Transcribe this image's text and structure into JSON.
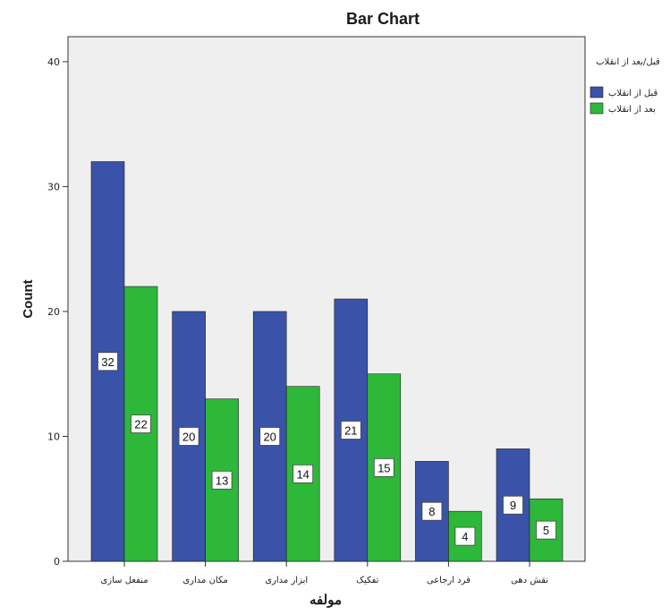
{
  "chart_data": {
    "type": "bar",
    "title": "Bar Chart",
    "xlabel": "مولفه",
    "ylabel": "Count",
    "ylim": [
      0,
      42
    ],
    "yticks": [
      0,
      10,
      20,
      30,
      40
    ],
    "categories": [
      "منفعل سازی",
      "مکان مداری",
      "ابزار مداری",
      "تفکیک",
      "فرد ارجاعی",
      "نقش دهی"
    ],
    "series": [
      {
        "name": "قبل از انقلاب",
        "color": "#3a52a8",
        "values": [
          32,
          20,
          20,
          21,
          8,
          9
        ]
      },
      {
        "name": "بعد از انقلاب",
        "color": "#2eb83a",
        "values": [
          22,
          13,
          14,
          15,
          4,
          5
        ]
      }
    ],
    "legend": {
      "title": "قبل/بعد از انقلاب",
      "position": "right"
    },
    "grid": false,
    "data_labels": true,
    "plot_background": "#efefef"
  }
}
